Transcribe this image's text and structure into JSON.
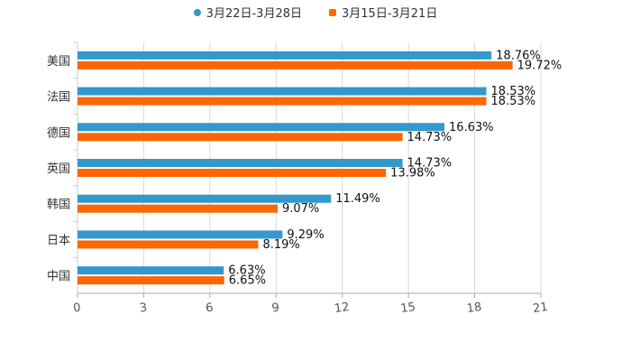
{
  "chart_data": {
    "type": "bar",
    "orientation": "horizontal",
    "categories": [
      "美国",
      "法国",
      "德国",
      "英国",
      "韩国",
      "日本",
      "中国"
    ],
    "series": [
      {
        "name": "3月22日-3月28日",
        "color": "#3399CC",
        "marker": "circle",
        "values": [
          18.76,
          18.53,
          16.63,
          14.73,
          11.49,
          9.29,
          6.63
        ],
        "labels": [
          "18.76%",
          "18.53%",
          "16.63%",
          "14.73%",
          "11.49%",
          "9.29%",
          "6.63%"
        ]
      },
      {
        "name": "3月15日-3月21日",
        "color": "#FF6600",
        "marker": "square",
        "values": [
          19.72,
          18.53,
          14.73,
          13.98,
          9.07,
          8.19,
          6.65
        ],
        "labels": [
          "19.72%",
          "18.53%",
          "14.73%",
          "13.98%",
          "9.07%",
          "8.19%",
          "6.65%"
        ]
      }
    ],
    "xlim": [
      0,
      21
    ],
    "xticks": [
      "0",
      "3",
      "6",
      "9",
      "12",
      "15",
      "18",
      "21"
    ],
    "xtick_values": [
      0,
      3,
      6,
      9,
      12,
      15,
      18,
      21
    ],
    "grid": true,
    "legend_position": "top-center",
    "title": "",
    "xlabel": "",
    "ylabel": ""
  }
}
